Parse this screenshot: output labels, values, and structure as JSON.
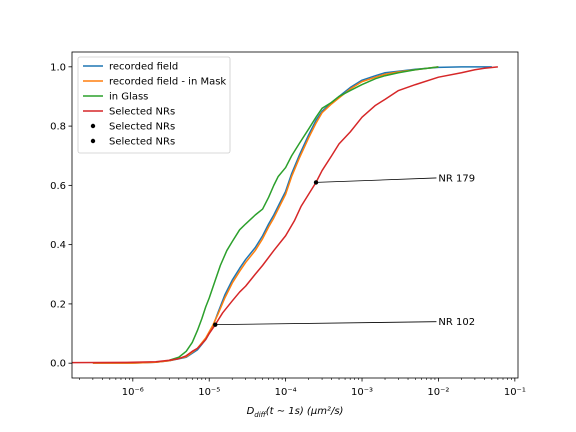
{
  "chart_data": {
    "type": "line",
    "xscale": "log",
    "xlabel_main": "D",
    "xlabel_sub": "diff",
    "xlabel_rest": "(t ∼ 1s) (μm²/s)",
    "xlim": [
      1.6e-07,
      0.11
    ],
    "ylim": [
      -0.05,
      1.05
    ],
    "xticks": [
      {
        "value": 1e-06,
        "label": "10⁻⁶"
      },
      {
        "value": 1e-05,
        "label": "10⁻⁵"
      },
      {
        "value": 0.0001,
        "label": "10⁻⁴"
      },
      {
        "value": 0.001,
        "label": "10⁻³"
      },
      {
        "value": 0.01,
        "label": "10⁻²"
      },
      {
        "value": 0.1,
        "label": "10⁻¹"
      }
    ],
    "yticks": [
      {
        "value": 0.0,
        "label": "0.0"
      },
      {
        "value": 0.2,
        "label": "0.2"
      },
      {
        "value": 0.4,
        "label": "0.4"
      },
      {
        "value": 0.6,
        "label": "0.6"
      },
      {
        "value": 0.8,
        "label": "0.8"
      },
      {
        "value": 1.0,
        "label": "1.0"
      }
    ],
    "legend_position": "upper-left",
    "series": [
      {
        "name": "recorded field",
        "color": "#1f77b4",
        "style": "line",
        "points": [
          [
            3e-07,
            0.0
          ],
          [
            1e-06,
            0.0
          ],
          [
            2e-06,
            0.003
          ],
          [
            3e-06,
            0.008
          ],
          [
            5e-06,
            0.02
          ],
          [
            7e-06,
            0.045
          ],
          [
            9e-06,
            0.08
          ],
          [
            1.1e-05,
            0.12
          ],
          [
            1.3e-05,
            0.17
          ],
          [
            1.6e-05,
            0.23
          ],
          [
            2e-05,
            0.28
          ],
          [
            2.5e-05,
            0.32
          ],
          [
            3e-05,
            0.35
          ],
          [
            4e-05,
            0.39
          ],
          [
            5e-05,
            0.43
          ],
          [
            6e-05,
            0.47
          ],
          [
            7e-05,
            0.5
          ],
          [
            8e-05,
            0.53
          ],
          [
            0.0001,
            0.58
          ],
          [
            0.00012,
            0.64
          ],
          [
            0.00015,
            0.7
          ],
          [
            0.0002,
            0.77
          ],
          [
            0.00025,
            0.82
          ],
          [
            0.0003,
            0.85
          ],
          [
            0.0004,
            0.88
          ],
          [
            0.0005,
            0.9
          ],
          [
            0.0007,
            0.93
          ],
          [
            0.001,
            0.955
          ],
          [
            0.0015,
            0.97
          ],
          [
            0.002,
            0.98
          ],
          [
            0.003,
            0.985
          ],
          [
            0.005,
            0.992
          ],
          [
            0.01,
            0.998
          ],
          [
            0.02,
            1.0
          ],
          [
            0.05,
            1.0
          ]
        ]
      },
      {
        "name": "recorded field - in Mask",
        "color": "#ff7f0e",
        "style": "line",
        "points": [
          [
            3e-07,
            0.0
          ],
          [
            1e-06,
            0.0
          ],
          [
            2e-06,
            0.003
          ],
          [
            3e-06,
            0.008
          ],
          [
            5e-06,
            0.022
          ],
          [
            7e-06,
            0.05
          ],
          [
            9e-06,
            0.085
          ],
          [
            1.1e-05,
            0.125
          ],
          [
            1.3e-05,
            0.165
          ],
          [
            1.6e-05,
            0.22
          ],
          [
            2e-05,
            0.27
          ],
          [
            2.5e-05,
            0.31
          ],
          [
            3e-05,
            0.34
          ],
          [
            4e-05,
            0.38
          ],
          [
            5e-05,
            0.42
          ],
          [
            6e-05,
            0.46
          ],
          [
            7e-05,
            0.49
          ],
          [
            8e-05,
            0.52
          ],
          [
            0.0001,
            0.57
          ],
          [
            0.00012,
            0.63
          ],
          [
            0.00015,
            0.69
          ],
          [
            0.0002,
            0.76
          ],
          [
            0.00025,
            0.81
          ],
          [
            0.0003,
            0.845
          ],
          [
            0.0004,
            0.875
          ],
          [
            0.0005,
            0.895
          ],
          [
            0.0007,
            0.925
          ],
          [
            0.001,
            0.95
          ],
          [
            0.0015,
            0.965
          ],
          [
            0.002,
            0.975
          ],
          [
            0.003,
            0.983
          ],
          [
            0.005,
            0.99
          ],
          [
            0.01,
            1.0
          ]
        ]
      },
      {
        "name": "in Glass",
        "color": "#2ca02c",
        "style": "line",
        "points": [
          [
            3e-06,
            0.01
          ],
          [
            4e-06,
            0.02
          ],
          [
            5e-06,
            0.04
          ],
          [
            6e-06,
            0.07
          ],
          [
            7e-06,
            0.11
          ],
          [
            8e-06,
            0.15
          ],
          [
            9e-06,
            0.19
          ],
          [
            1e-05,
            0.22
          ],
          [
            1.2e-05,
            0.28
          ],
          [
            1.4e-05,
            0.33
          ],
          [
            1.7e-05,
            0.38
          ],
          [
            2e-05,
            0.41
          ],
          [
            2.5e-05,
            0.45
          ],
          [
            3e-05,
            0.47
          ],
          [
            4e-05,
            0.5
          ],
          [
            5e-05,
            0.52
          ],
          [
            6e-05,
            0.56
          ],
          [
            7e-05,
            0.6
          ],
          [
            8e-05,
            0.63
          ],
          [
            0.0001,
            0.66
          ],
          [
            0.00012,
            0.7
          ],
          [
            0.00015,
            0.74
          ],
          [
            0.0002,
            0.79
          ],
          [
            0.00025,
            0.83
          ],
          [
            0.0003,
            0.86
          ],
          [
            0.0004,
            0.88
          ],
          [
            0.0005,
            0.9
          ],
          [
            0.0007,
            0.92
          ],
          [
            0.001,
            0.94
          ],
          [
            0.0015,
            0.96
          ],
          [
            0.002,
            0.97
          ],
          [
            0.003,
            0.98
          ],
          [
            0.005,
            0.99
          ],
          [
            0.01,
            1.0
          ]
        ]
      },
      {
        "name": "Selected NRs",
        "color": "#d62728",
        "style": "line",
        "points": [
          [
            1.6e-07,
            0.002
          ],
          [
            1e-06,
            0.003
          ],
          [
            2e-06,
            0.005
          ],
          [
            3e-06,
            0.01
          ],
          [
            4e-06,
            0.015
          ],
          [
            5e-06,
            0.025
          ],
          [
            6e-06,
            0.04
          ],
          [
            7e-06,
            0.05
          ],
          [
            8e-06,
            0.065
          ],
          [
            9e-06,
            0.08
          ],
          [
            1e-05,
            0.1
          ],
          [
            1.2e-05,
            0.13
          ],
          [
            1.5e-05,
            0.17
          ],
          [
            2e-05,
            0.21
          ],
          [
            2.5e-05,
            0.24
          ],
          [
            3e-05,
            0.26
          ],
          [
            4e-05,
            0.3
          ],
          [
            5e-05,
            0.33
          ],
          [
            7e-05,
            0.38
          ],
          [
            0.0001,
            0.43
          ],
          [
            0.00013,
            0.48
          ],
          [
            0.00016,
            0.53
          ],
          [
            0.0002,
            0.57
          ],
          [
            0.00025,
            0.61
          ],
          [
            0.0003,
            0.65
          ],
          [
            0.0004,
            0.7
          ],
          [
            0.0005,
            0.74
          ],
          [
            0.0007,
            0.78
          ],
          [
            0.001,
            0.83
          ],
          [
            0.0015,
            0.87
          ],
          [
            0.002,
            0.89
          ],
          [
            0.003,
            0.92
          ],
          [
            0.005,
            0.94
          ],
          [
            0.01,
            0.965
          ],
          [
            0.02,
            0.98
          ],
          [
            0.03,
            0.99
          ],
          [
            0.04,
            0.995
          ],
          [
            0.06,
            1.0
          ]
        ]
      },
      {
        "name": "Selected NRs",
        "color": "#000000",
        "style": "marker",
        "points": [
          [
            0.00025,
            0.61
          ]
        ]
      },
      {
        "name": "Selected NRs",
        "color": "#000000",
        "style": "marker",
        "points": [
          [
            1.2e-05,
            0.13
          ]
        ]
      }
    ],
    "annotations": [
      {
        "text": "NR 179",
        "point": [
          0.00025,
          0.61
        ],
        "text_pos": [
          0.01,
          0.625
        ]
      },
      {
        "text": "NR 102",
        "point": [
          1.2e-05,
          0.13
        ],
        "text_pos": [
          0.01,
          0.14
        ]
      }
    ]
  }
}
